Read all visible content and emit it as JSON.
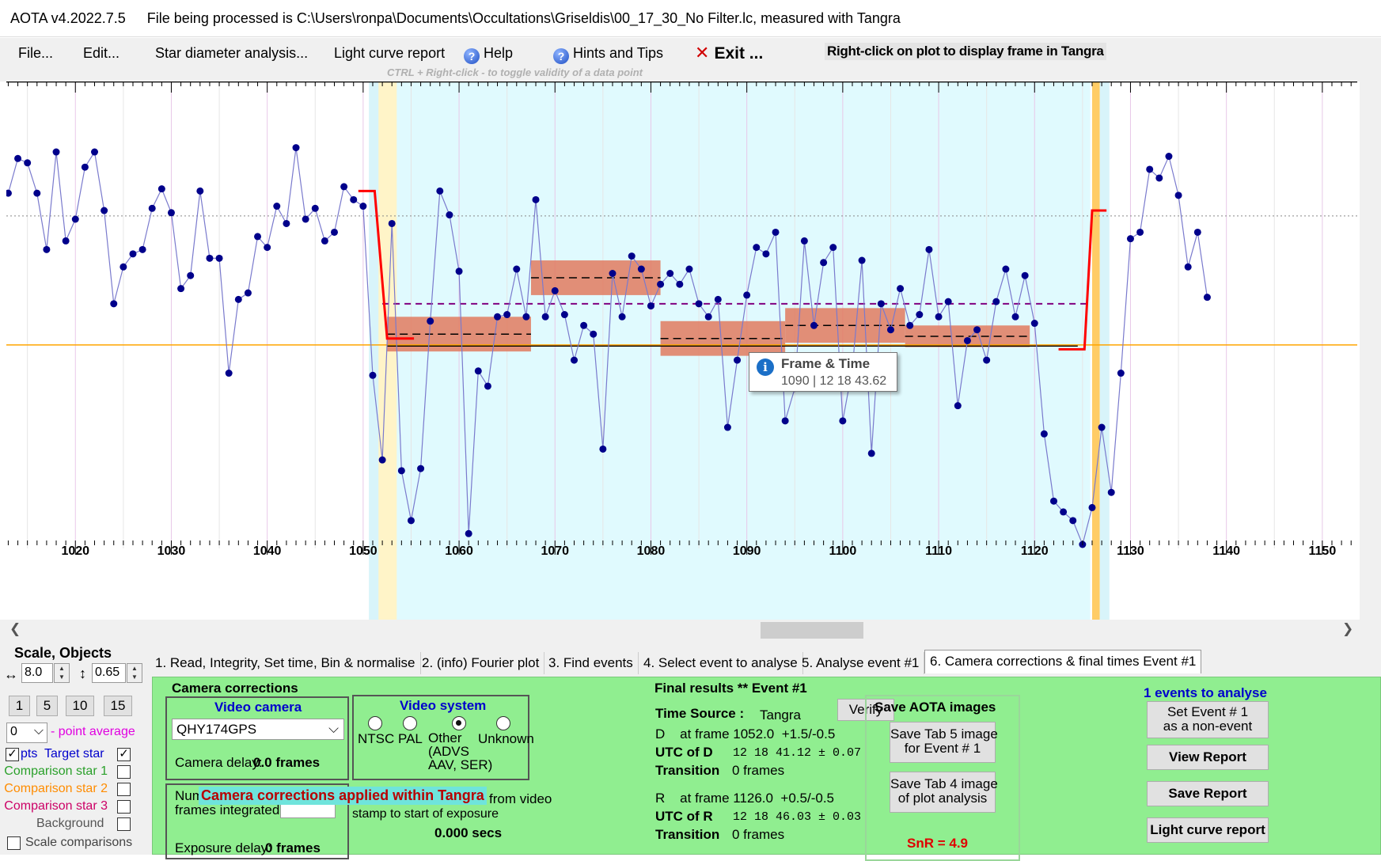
{
  "title": {
    "app": "AOTA v4.2022.7.5",
    "file": "File being processed is C:\\Users\\ronpa\\Documents\\Occultations\\Griseldis\\00_17_30_No Filter.lc, measured with Tangra"
  },
  "menu": {
    "file": "File...",
    "edit": "Edit...",
    "star_diameter": "Star diameter analysis...",
    "light_curve_report": "Light curve report",
    "help": "Help",
    "hints": "Hints and Tips",
    "exit": "Exit ...",
    "right_click_hint": "Right-click on plot to display frame in Tangra",
    "ctrl_hint": "CTRL + Right-click  -  to toggle validity of a data point",
    "help_icon": "?"
  },
  "tooltip": {
    "title": "Frame & Time",
    "value": "1090 | 12 18 43.62",
    "icon": "i"
  },
  "plot": {
    "x_ticks": [
      "1020",
      "1030",
      "1040",
      "1050",
      "1060",
      "1070",
      "1080",
      "1090",
      "1100",
      "1110",
      "1120",
      "1130",
      "1140",
      "1150"
    ],
    "colors": {
      "series": "#00008b",
      "line": "#7a7acd",
      "fit": "#ff0000",
      "band": "#e07a5f",
      "orange": "#ffa500",
      "event_bg": "#e0fafe"
    }
  },
  "chart_data": {
    "type": "line",
    "x_first": 1013,
    "values": [
      262,
      278,
      276,
      262,
      236,
      281,
      240,
      250,
      274,
      281,
      254,
      211,
      228,
      234,
      236,
      255,
      264,
      253,
      218,
      224,
      263,
      232,
      232,
      179,
      213,
      216,
      242,
      237,
      256,
      248,
      283,
      250,
      255,
      240,
      244,
      265,
      259,
      256,
      178,
      139,
      248,
      134,
      111,
      135,
      203,
      263,
      252,
      226,
      105,
      180,
      173,
      205,
      206,
      227,
      205,
      259,
      205,
      217,
      206,
      185,
      201,
      197,
      144,
      225,
      205,
      233,
      227,
      210,
      220,
      225,
      220,
      227,
      211,
      205,
      213,
      154,
      185,
      215,
      237,
      234,
      244,
      157,
      172,
      240,
      201,
      230,
      237,
      157,
      181,
      231,
      142,
      211,
      199,
      218,
      201,
      206,
      236,
      205,
      212,
      164,
      194,
      199,
      185,
      212,
      227,
      205,
      224,
      202,
      151,
      120,
      115,
      111,
      100,
      117,
      154,
      124,
      179,
      241,
      244,
      273,
      269,
      279,
      261,
      228,
      244,
      214
    ],
    "bands": [
      {
        "from": 1052.5,
        "to": 1067.5,
        "center": 197,
        "half": 8
      },
      {
        "from": 1067.5,
        "to": 1081.0,
        "center": 223,
        "half": 8
      },
      {
        "from": 1081.0,
        "to": 1094.0,
        "center": 195,
        "half": 8
      },
      {
        "from": 1094.0,
        "to": 1106.5,
        "center": 201,
        "half": 8
      },
      {
        "from": 1106.5,
        "to": 1119.5,
        "center": 196,
        "half": 5
      }
    ]
  },
  "tabs": [
    "1.  Read, Integrity, Set time, Bin & normalise",
    "2. (info)  Fourier plot",
    "3. Find events",
    "4. Select event to analyse",
    "5. Analyse event #1",
    "6. Camera corrections & final times Event #1"
  ],
  "left": {
    "title": "Scale,  Objects",
    "h_value": "8.0",
    "v_value": "0.65",
    "h_icon": "↔",
    "v_icon": "↕",
    "spin_up": "▲",
    "spin_down": "▼",
    "num_buttons": [
      "1",
      "5",
      "10",
      "15"
    ],
    "avg_value": "0",
    "avg_label": "- point average",
    "pts_label": "pts",
    "check_mark": "✓",
    "combo_arrow": "⌵",
    "objects": [
      {
        "label": "Target star",
        "color": "#0000cc"
      },
      {
        "label": "Comparison star 1",
        "color": "#2aa02a"
      },
      {
        "label": "Comparison star 2",
        "color": "#ff8c00"
      },
      {
        "label": "Comparison star 3",
        "color": "#cc0066"
      },
      {
        "label": "Background",
        "color": "#555555"
      }
    ],
    "scale_comparisons": "Scale comparisons"
  },
  "camera": {
    "title": "Camera corrections",
    "video_camera": "Video camera",
    "camera_value": "QHY174GPS",
    "camera_delay": "Camera delay:",
    "camera_delay_value": "0.0 frames",
    "video_system": "Video system",
    "systems": [
      "NTSC",
      "PAL",
      "Other\n(ADVS\nAAV, SER)",
      "Unknown"
    ],
    "frames_label_1": "Num",
    "frames_label_2": "frames integrated",
    "applied": "Camera corrections applied within Tangra",
    "from_video": "from video",
    "stamp": "stamp to start of exposure",
    "exposure_delay": "Exposure delay:",
    "exposure_delay_value": "0 frames",
    "secs": "0.000 secs"
  },
  "final": {
    "title": "Final results  **  Event #1",
    "time_source_label": "Time Source :",
    "time_source": "Tangra",
    "verify": "Verify",
    "d_line": "D    at frame 1052.0  +1.5/-0.5",
    "utc_d_label": "UTC of D",
    "utc_d": "12 18 41.12  ± 0.07",
    "transition_label": "Transition",
    "transition_d": "0 frames",
    "r_line": "R    at frame 1126.0  +0.5/-0.5",
    "utc_r_label": "UTC of R",
    "utc_r": "12 18 46.03  ± 0.03",
    "transition_r": "0 frames"
  },
  "save": {
    "title": "Save AOTA images",
    "tab5": "Save Tab 5 image\nfor Event # 1",
    "tab4": "Save Tab 4 image\nof plot analysis",
    "snr": "SnR = 4.9"
  },
  "events": {
    "count_label": "1  events to analyse",
    "set_non_event": "Set Event # 1\nas a non-event",
    "view_report": "View Report",
    "save_report": "Save Report",
    "light_curve_report": "Light curve report"
  }
}
